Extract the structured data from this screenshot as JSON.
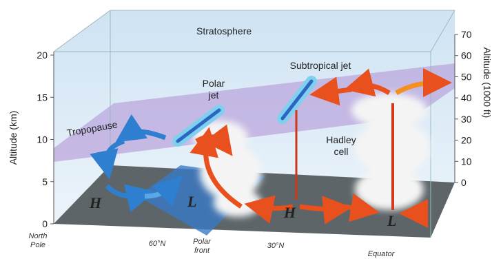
{
  "labels": {
    "stratosphere": "Stratosphere",
    "tropopause": "Tropopause",
    "polar_jet": [
      "Polar",
      "jet"
    ],
    "subtropical_jet": "Subtropical jet",
    "hadley_cell": [
      "Hadley",
      "cell"
    ]
  },
  "left_axis": {
    "title": "Altitude (km)",
    "ticks": [
      0,
      5,
      10,
      15,
      20
    ]
  },
  "right_axis": {
    "title": "Altitude (1000 ft)",
    "ticks": [
      0,
      10,
      20,
      30,
      40,
      50,
      60,
      70
    ]
  },
  "bottom_labels": {
    "north_pole": [
      "North",
      "Pole"
    ],
    "lat60": "60°N",
    "polar_front": [
      "Polar",
      "front"
    ],
    "lat30": "30°N",
    "equator": "Equator"
  },
  "pressure": {
    "h1": "H",
    "l1": "L",
    "h2": "H",
    "l2": "L"
  }
}
